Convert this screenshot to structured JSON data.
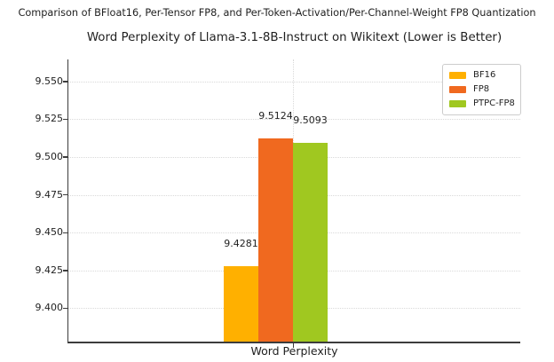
{
  "chart_data": {
    "type": "bar",
    "suptitle": "Comparison of BFloat16, Per-Tensor FP8, and Per-Token-Activation/Per-Channel-Weight FP8 Quantization",
    "title": "Word Perplexity of Llama-3.1-8B-Instruct on Wikitext (Lower is Better)",
    "categories": [
      "Word Perplexity"
    ],
    "series": [
      {
        "name": "BF16",
        "values": [
          9.4281
        ],
        "color": "#FFB000"
      },
      {
        "name": "FP8",
        "values": [
          9.5124
        ],
        "color": "#F0691F"
      },
      {
        "name": "PTPC-FP8",
        "values": [
          9.5093
        ],
        "color": "#A0C820"
      }
    ],
    "bar_labels": [
      "9.4281",
      "9.5124",
      "9.5093"
    ],
    "xlabel": "Word Perplexity",
    "ylabel": "",
    "ylim": [
      9.378,
      9.5645
    ],
    "yticks": [
      9.4,
      9.425,
      9.45,
      9.475,
      9.5,
      9.525,
      9.55
    ],
    "ytick_labels": [
      "9.400",
      "9.425",
      "9.450",
      "9.475",
      "9.500",
      "9.525",
      "9.550"
    ],
    "grid": true,
    "grid_style": "dotted",
    "legend": {
      "position": "upper right",
      "entries": [
        "BF16",
        "FP8",
        "PTPC-FP8"
      ]
    },
    "colors": {
      "background": "#ffffff",
      "text": "#1f1f1f",
      "spine": "#3c3c3c",
      "grid": "#d9d9d9",
      "legend_border": "#cccccc"
    }
  }
}
